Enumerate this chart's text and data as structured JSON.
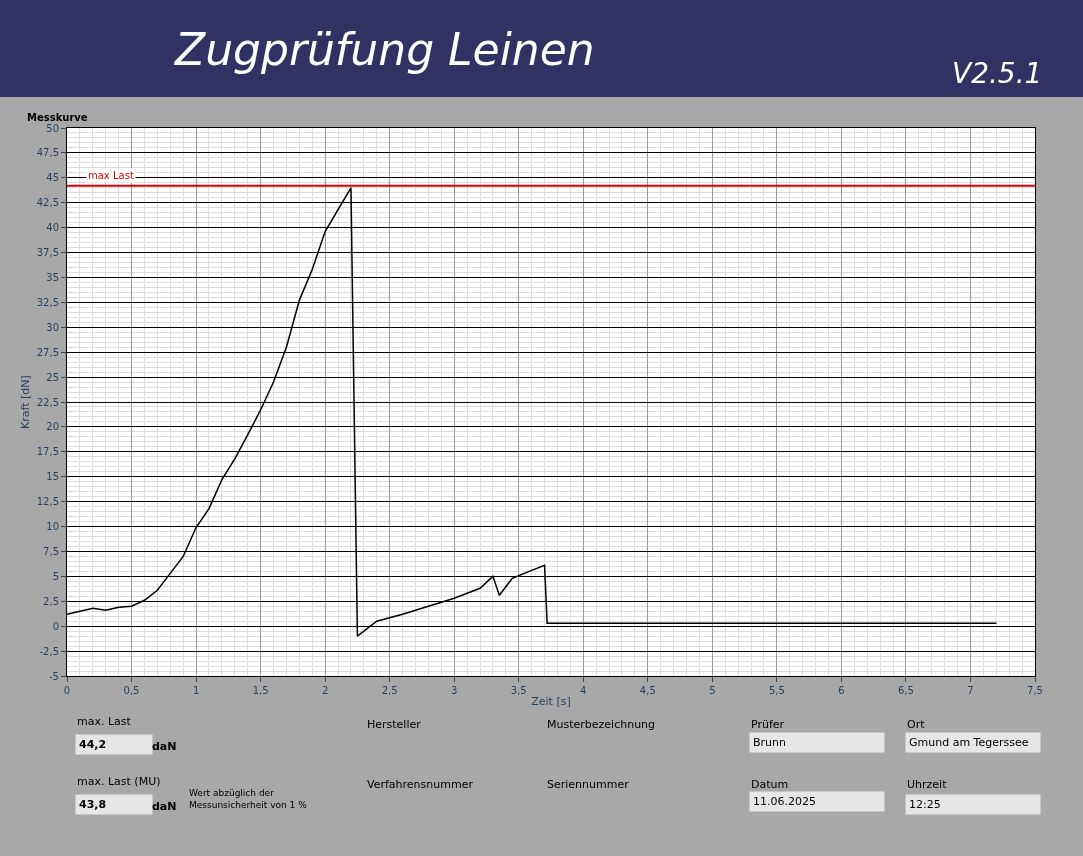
{
  "chart_data": {
    "type": "line",
    "title": "Zugprüfung Leinen",
    "subtitle": "Messkurve",
    "xlabel": "Zeit [s]",
    "ylabel": "Kraft [dN]",
    "x": [
      0,
      0.1,
      0.2,
      0.3,
      0.4,
      0.5,
      0.6,
      0.7,
      0.8,
      0.9,
      1.0,
      1.1,
      1.2,
      1.3,
      1.4,
      1.5,
      1.6,
      1.7,
      1.8,
      1.9,
      2.0,
      2.1,
      2.2,
      2.25,
      2.4,
      2.6,
      2.8,
      3.0,
      3.2,
      3.3,
      3.35,
      3.45,
      3.6,
      3.7,
      3.72,
      4.0,
      4.5,
      5.0,
      5.5,
      6.0,
      6.5,
      7.0,
      7.2
    ],
    "series": [
      {
        "color": "#000000",
        "values": [
          1.2,
          1.5,
          1.8,
          1.6,
          1.9,
          2.0,
          2.6,
          3.6,
          5.3,
          7.0,
          9.9,
          11.8,
          14.7,
          16.8,
          19.2,
          21.7,
          24.5,
          28.0,
          32.7,
          35.8,
          39.6,
          41.8,
          44.0,
          -1.0,
          0.5,
          1.2,
          2.0,
          2.8,
          3.8,
          5.0,
          3.1,
          4.8,
          5.6,
          6.1,
          0.3,
          0.3,
          0.3,
          0.3,
          0.3,
          0.3,
          0.3,
          0.3,
          0.3
        ]
      }
    ],
    "xlim": [
      0,
      7.5
    ],
    "ylim": [
      -5,
      50
    ],
    "xticks": [
      0,
      {
        "value": 0.5,
        "label": "0,5"
      },
      1,
      {
        "value": 1.5,
        "label": "1,5"
      },
      2,
      {
        "value": 2.5,
        "label": "2,5"
      },
      3,
      {
        "value": 3.5,
        "label": "3,5"
      },
      4,
      {
        "value": 4.5,
        "label": "4,5"
      },
      5,
      {
        "value": 5.5,
        "label": "5,5"
      },
      6,
      {
        "value": 6.5,
        "label": "6,5"
      },
      7,
      {
        "value": 7.5,
        "label": "7,5"
      }
    ],
    "yticks": [
      -5,
      {
        "value": -2.5,
        "label": "-2,5"
      },
      0,
      {
        "value": 2.5,
        "label": "2,5"
      },
      5,
      {
        "value": 7.5,
        "label": "7,5"
      },
      10,
      {
        "value": 12.5,
        "label": "12,5"
      },
      15,
      {
        "value": 17.5,
        "label": "17,5"
      },
      20,
      {
        "value": 22.5,
        "label": "22,5"
      },
      25,
      {
        "value": 27.5,
        "label": "27,5"
      },
      30,
      {
        "value": 32.5,
        "label": "32,5"
      },
      35,
      {
        "value": 37.5,
        "label": "37,5"
      },
      40,
      {
        "value": 42.5,
        "label": "42,5"
      },
      45,
      {
        "value": 47.5,
        "label": "47,5"
      },
      50
    ],
    "ref_lines": [
      {
        "axis": "y",
        "value": 44.2,
        "label": "max Last",
        "color": "#e00000"
      }
    ],
    "grid": true,
    "marker": "none",
    "line_style": "solid",
    "annotations": [
      "V2.5.1",
      "max. Last",
      "44,2",
      "daN",
      "max. Last (MU)",
      "43,8",
      "daN",
      "Wert abzüglich der\nMessunsicherheit von 1 %",
      "Hersteller",
      "Verfahrensnummer",
      "Musterbezeichnung",
      "Seriennummer",
      "Prüfer",
      "Brunn",
      "Datum",
      "11.06.2025",
      "Ort",
      "Gmund am Tegerssee",
      "Uhrzeit",
      "12:25"
    ]
  }
}
